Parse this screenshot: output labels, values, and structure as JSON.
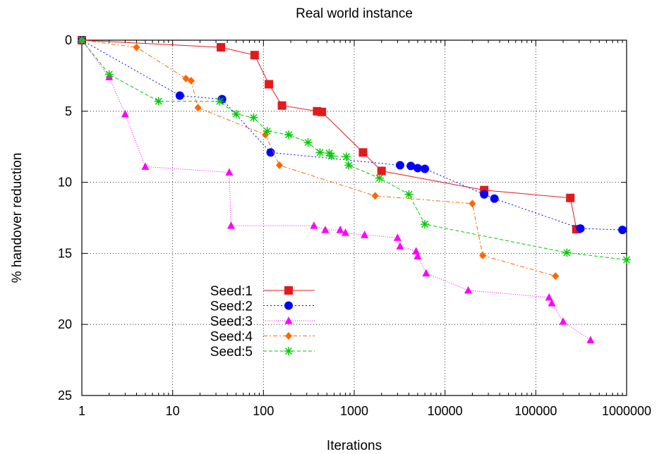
{
  "chart_data": {
    "type": "line",
    "title": "Real world instance",
    "xlabel": "Iterations",
    "ylabel": "% handover reduction",
    "xscale": "log",
    "xlim": [
      1,
      1000000
    ],
    "ylim": [
      0,
      25
    ],
    "y_inverted": true,
    "grid": true,
    "legend_position": "bottom-left",
    "xticks": [
      1,
      10,
      100,
      1000,
      10000,
      100000,
      1000000
    ],
    "xtick_labels": [
      "1",
      "10",
      "100",
      "1000",
      "10000",
      "100000",
      "1000000"
    ],
    "yticks": [
      0,
      5,
      10,
      15,
      20,
      25
    ],
    "ytick_labels": [
      "0",
      "5",
      "10",
      "15",
      "20",
      "25"
    ],
    "series": [
      {
        "name": "Seed:1",
        "color": "#e31a1c",
        "marker": "square",
        "dash": "",
        "points": [
          [
            1,
            0
          ],
          [
            34,
            0.5
          ],
          [
            80,
            1.05
          ],
          [
            115,
            3.1
          ],
          [
            160,
            4.6
          ],
          [
            390,
            5.0
          ],
          [
            440,
            5.05
          ],
          [
            1250,
            7.9
          ],
          [
            2000,
            9.2
          ],
          [
            27000,
            10.55
          ],
          [
            240000,
            11.1
          ],
          [
            280000,
            13.3
          ]
        ]
      },
      {
        "name": "Seed:2",
        "color": "#0000ff",
        "marker": "circle",
        "dash": "2,3",
        "points": [
          [
            1,
            0
          ],
          [
            12,
            3.9
          ],
          [
            35,
            4.15
          ],
          [
            120,
            7.9
          ],
          [
            3200,
            8.8
          ],
          [
            4200,
            8.85
          ],
          [
            5000,
            9.0
          ],
          [
            6000,
            9.05
          ],
          [
            27000,
            10.85
          ],
          [
            35000,
            11.15
          ],
          [
            310000,
            13.25
          ],
          [
            900000,
            13.35
          ]
        ]
      },
      {
        "name": "Seed:3",
        "color": "#ff00ff",
        "marker": "triangle",
        "dash": "1,2",
        "points": [
          [
            1,
            0
          ],
          [
            2,
            2.6
          ],
          [
            3,
            5.2
          ],
          [
            5,
            8.9
          ],
          [
            42,
            9.3
          ],
          [
            44,
            13.05
          ],
          [
            360,
            13.05
          ],
          [
            480,
            13.35
          ],
          [
            700,
            13.35
          ],
          [
            800,
            13.55
          ],
          [
            1300,
            13.7
          ],
          [
            3000,
            13.9
          ],
          [
            3200,
            14.5
          ],
          [
            4800,
            14.85
          ],
          [
            5000,
            15.2
          ],
          [
            6200,
            16.4
          ],
          [
            18000,
            17.6
          ],
          [
            140000,
            18.1
          ],
          [
            150000,
            18.5
          ],
          [
            200000,
            19.8
          ],
          [
            400000,
            21.1
          ]
        ]
      },
      {
        "name": "Seed:4",
        "color": "#ff6600",
        "marker": "diamond",
        "dash": "6,3,2,3",
        "points": [
          [
            1,
            0
          ],
          [
            4,
            0.5
          ],
          [
            14,
            2.7
          ],
          [
            16,
            2.85
          ],
          [
            19,
            4.75
          ],
          [
            105,
            6.65
          ],
          [
            150,
            8.8
          ],
          [
            1700,
            10.95
          ],
          [
            20000,
            11.5
          ],
          [
            26000,
            15.15
          ],
          [
            165000,
            16.6
          ]
        ]
      },
      {
        "name": "Seed:5",
        "color": "#00cc00",
        "marker": "star",
        "dash": "5,3",
        "points": [
          [
            1,
            0
          ],
          [
            2,
            2.4
          ],
          [
            7,
            4.3
          ],
          [
            33,
            4.3
          ],
          [
            50,
            5.2
          ],
          [
            78,
            5.45
          ],
          [
            110,
            6.4
          ],
          [
            190,
            6.65
          ],
          [
            310,
            7.2
          ],
          [
            420,
            7.9
          ],
          [
            530,
            7.95
          ],
          [
            560,
            8.15
          ],
          [
            820,
            8.2
          ],
          [
            870,
            8.8
          ],
          [
            1900,
            9.7
          ],
          [
            4000,
            10.85
          ],
          [
            6000,
            12.95
          ],
          [
            220000,
            14.95
          ],
          [
            1000000,
            15.45
          ]
        ]
      }
    ]
  }
}
